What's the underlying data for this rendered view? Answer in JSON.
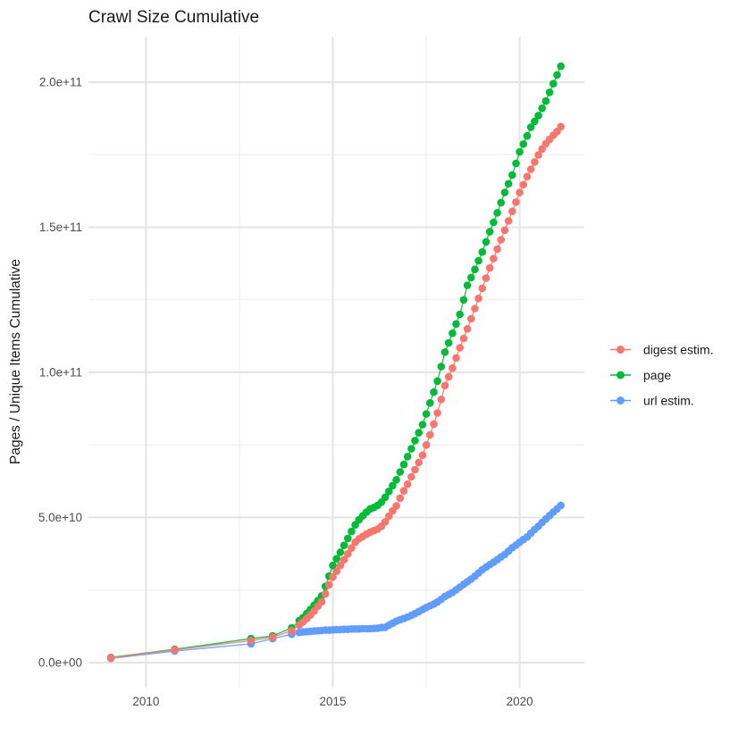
{
  "chart_data": {
    "type": "scatter",
    "title": "Crawl Size Cumulative",
    "xlabel": "",
    "ylabel": "Pages / Unique Items Cumulative",
    "values_unit": "1e9 (billions of pages / unique items)",
    "grid": true,
    "legend_position": "right",
    "x_axis": {
      "range": [
        2008.46,
        2021.73
      ],
      "ticks": [
        2010,
        2015,
        2020
      ],
      "tick_labels": [
        "2010",
        "2015",
        "2020"
      ],
      "minor_ticks": [
        2012.5,
        2017.5
      ]
    },
    "y_axis": {
      "range": [
        -8.6,
        215.7
      ],
      "ticks": [
        0,
        50,
        100,
        150,
        200
      ],
      "tick_labels": [
        "0.0e+00",
        "5.0e+10",
        "1.0e+11",
        "1.5e+11",
        "2.0e+11"
      ],
      "minor_ticks": [
        25,
        75,
        125,
        175
      ]
    },
    "draw_order": [
      1,
      2,
      0
    ],
    "series": [
      {
        "name": "digest estim.",
        "color": "#F8766D",
        "points": [
          [
            2009.06,
            1.7
          ],
          [
            2010.77,
            4.4
          ],
          [
            2012.81,
            7.6
          ],
          [
            2013.39,
            8.8
          ],
          [
            2013.9,
            11.0
          ],
          [
            2014.1,
            13.0
          ],
          [
            2014.2,
            14.0
          ],
          [
            2014.3,
            15.2
          ],
          [
            2014.4,
            16.4
          ],
          [
            2014.5,
            17.8
          ],
          [
            2014.6,
            19.4
          ],
          [
            2014.7,
            21.0
          ],
          [
            2014.8,
            23.7
          ],
          [
            2014.9,
            26.8
          ],
          [
            2015.0,
            29.5
          ],
          [
            2015.1,
            31.5
          ],
          [
            2015.2,
            33.5
          ],
          [
            2015.3,
            35.5
          ],
          [
            2015.4,
            37.5
          ],
          [
            2015.5,
            39.5
          ],
          [
            2015.6,
            41.5
          ],
          [
            2015.7,
            42.7
          ],
          [
            2015.8,
            43.5
          ],
          [
            2015.9,
            44.3
          ],
          [
            2016.0,
            45.0
          ],
          [
            2016.1,
            45.5
          ],
          [
            2016.2,
            46.0
          ],
          [
            2016.3,
            47.0
          ],
          [
            2016.4,
            48.5
          ],
          [
            2016.5,
            50.5
          ],
          [
            2016.6,
            52.3
          ],
          [
            2016.7,
            54.0
          ],
          [
            2016.8,
            56.7
          ],
          [
            2016.9,
            59.2
          ],
          [
            2017.0,
            61.5
          ],
          [
            2017.1,
            64.0
          ],
          [
            2017.2,
            66.5
          ],
          [
            2017.3,
            69.0
          ],
          [
            2017.4,
            71.5
          ],
          [
            2017.5,
            75.0
          ],
          [
            2017.6,
            78.5
          ],
          [
            2017.7,
            82.2
          ],
          [
            2017.8,
            86.0
          ],
          [
            2017.9,
            90.7
          ],
          [
            2018.0,
            95.5
          ],
          [
            2018.1,
            98.5
          ],
          [
            2018.2,
            101.5
          ],
          [
            2018.3,
            105.0
          ],
          [
            2018.4,
            108.5
          ],
          [
            2018.5,
            111.7
          ],
          [
            2018.6,
            115.0
          ],
          [
            2018.7,
            118.5
          ],
          [
            2018.8,
            122.0
          ],
          [
            2018.9,
            125.5
          ],
          [
            2019.0,
            129.0
          ],
          [
            2019.1,
            132.5
          ],
          [
            2019.2,
            136.0
          ],
          [
            2019.3,
            139.2
          ],
          [
            2019.4,
            142.5
          ],
          [
            2019.5,
            145.7
          ],
          [
            2019.6,
            149.0
          ],
          [
            2019.7,
            152.2
          ],
          [
            2019.8,
            155.5
          ],
          [
            2019.9,
            158.7
          ],
          [
            2020.0,
            162.0
          ],
          [
            2020.1,
            164.7
          ],
          [
            2020.2,
            167.5
          ],
          [
            2020.3,
            170.0
          ],
          [
            2020.4,
            172.5
          ],
          [
            2020.5,
            174.9
          ],
          [
            2020.6,
            177.0
          ],
          [
            2020.7,
            178.8
          ],
          [
            2020.8,
            180.3
          ],
          [
            2020.9,
            181.7
          ],
          [
            2021.0,
            183.0
          ],
          [
            2021.1,
            184.7
          ]
        ]
      },
      {
        "name": "page",
        "color": "#00BA38",
        "points": [
          [
            2009.06,
            1.8
          ],
          [
            2010.77,
            4.6
          ],
          [
            2012.81,
            8.3
          ],
          [
            2013.39,
            9.2
          ],
          [
            2013.9,
            12.0
          ],
          [
            2014.1,
            14.5
          ],
          [
            2014.2,
            15.5
          ],
          [
            2014.3,
            16.9
          ],
          [
            2014.4,
            18.3
          ],
          [
            2014.5,
            19.8
          ],
          [
            2014.6,
            21.4
          ],
          [
            2014.7,
            23.0
          ],
          [
            2014.8,
            26.3
          ],
          [
            2014.9,
            29.8
          ],
          [
            2015.0,
            33.5
          ],
          [
            2015.1,
            35.8
          ],
          [
            2015.2,
            38.0
          ],
          [
            2015.3,
            40.4
          ],
          [
            2015.4,
            42.8
          ],
          [
            2015.5,
            45.2
          ],
          [
            2015.6,
            47.5
          ],
          [
            2015.7,
            49.2
          ],
          [
            2015.8,
            50.6
          ],
          [
            2015.9,
            51.9
          ],
          [
            2016.0,
            53.0
          ],
          [
            2016.1,
            53.5
          ],
          [
            2016.2,
            54.2
          ],
          [
            2016.3,
            55.3
          ],
          [
            2016.4,
            57.0
          ],
          [
            2016.5,
            59.0
          ],
          [
            2016.6,
            61.0
          ],
          [
            2016.7,
            63.0
          ],
          [
            2016.8,
            65.7
          ],
          [
            2016.9,
            68.3
          ],
          [
            2017.0,
            71.0
          ],
          [
            2017.1,
            73.7
          ],
          [
            2017.2,
            76.5
          ],
          [
            2017.3,
            79.2
          ],
          [
            2017.4,
            82.0
          ],
          [
            2017.5,
            85.7
          ],
          [
            2017.6,
            89.5
          ],
          [
            2017.7,
            93.2
          ],
          [
            2017.8,
            97.0
          ],
          [
            2017.9,
            102.0
          ],
          [
            2018.0,
            107.0
          ],
          [
            2018.1,
            110.2
          ],
          [
            2018.2,
            113.5
          ],
          [
            2018.3,
            116.7
          ],
          [
            2018.4,
            120.0
          ],
          [
            2018.5,
            125.0
          ],
          [
            2018.6,
            130.0
          ],
          [
            2018.7,
            132.7
          ],
          [
            2018.8,
            135.5
          ],
          [
            2018.9,
            138.5
          ],
          [
            2019.0,
            141.5
          ],
          [
            2019.1,
            145.0
          ],
          [
            2019.2,
            148.5
          ],
          [
            2019.3,
            151.7
          ],
          [
            2019.4,
            155.0
          ],
          [
            2019.5,
            158.5
          ],
          [
            2019.6,
            162.0
          ],
          [
            2019.7,
            165.0
          ],
          [
            2019.8,
            168.0
          ],
          [
            2019.9,
            172.0
          ],
          [
            2020.0,
            176.0
          ],
          [
            2020.1,
            178.7
          ],
          [
            2020.2,
            181.5
          ],
          [
            2020.3,
            184.5
          ],
          [
            2020.4,
            186.5
          ],
          [
            2020.5,
            188.5
          ],
          [
            2020.6,
            191.0
          ],
          [
            2020.7,
            193.5
          ],
          [
            2020.8,
            196.5
          ],
          [
            2020.9,
            199.5
          ],
          [
            2021.0,
            202.5
          ],
          [
            2021.1,
            205.5
          ]
        ]
      },
      {
        "name": "url estim.",
        "color": "#619CFF",
        "points": [
          [
            2009.06,
            1.5
          ],
          [
            2010.77,
            4.0
          ],
          [
            2012.81,
            6.5
          ],
          [
            2013.39,
            8.3
          ],
          [
            2013.9,
            9.8
          ],
          [
            2014.1,
            10.4
          ],
          [
            2014.2,
            10.6
          ],
          [
            2014.3,
            10.7
          ],
          [
            2014.4,
            10.8
          ],
          [
            2014.5,
            10.9
          ],
          [
            2014.6,
            11.0
          ],
          [
            2014.7,
            11.1
          ],
          [
            2014.8,
            11.2
          ],
          [
            2014.9,
            11.2
          ],
          [
            2015.0,
            11.3
          ],
          [
            2015.1,
            11.4
          ],
          [
            2015.2,
            11.4
          ],
          [
            2015.3,
            11.5
          ],
          [
            2015.4,
            11.5
          ],
          [
            2015.5,
            11.6
          ],
          [
            2015.6,
            11.6
          ],
          [
            2015.7,
            11.6
          ],
          [
            2015.8,
            11.7
          ],
          [
            2015.9,
            11.7
          ],
          [
            2016.0,
            11.7
          ],
          [
            2016.1,
            11.8
          ],
          [
            2016.2,
            11.9
          ],
          [
            2016.3,
            12.1
          ],
          [
            2016.4,
            12.2
          ],
          [
            2016.5,
            12.9
          ],
          [
            2016.6,
            13.6
          ],
          [
            2016.7,
            14.3
          ],
          [
            2016.8,
            14.8
          ],
          [
            2016.9,
            15.2
          ],
          [
            2017.0,
            15.7
          ],
          [
            2017.1,
            16.3
          ],
          [
            2017.2,
            16.9
          ],
          [
            2017.3,
            17.6
          ],
          [
            2017.4,
            18.3
          ],
          [
            2017.5,
            19.0
          ],
          [
            2017.6,
            19.6
          ],
          [
            2017.7,
            20.2
          ],
          [
            2017.8,
            20.9
          ],
          [
            2017.9,
            21.8
          ],
          [
            2018.0,
            22.8
          ],
          [
            2018.1,
            23.5
          ],
          [
            2018.2,
            24.2
          ],
          [
            2018.3,
            25.1
          ],
          [
            2018.4,
            26.0
          ],
          [
            2018.5,
            27.0
          ],
          [
            2018.6,
            27.9
          ],
          [
            2018.7,
            28.8
          ],
          [
            2018.8,
            29.8
          ],
          [
            2018.9,
            30.9
          ],
          [
            2019.0,
            32.0
          ],
          [
            2019.1,
            32.9
          ],
          [
            2019.2,
            33.8
          ],
          [
            2019.3,
            34.6
          ],
          [
            2019.4,
            35.5
          ],
          [
            2019.5,
            36.4
          ],
          [
            2019.6,
            37.3
          ],
          [
            2019.7,
            38.4
          ],
          [
            2019.8,
            39.6
          ],
          [
            2019.9,
            40.5
          ],
          [
            2020.0,
            41.5
          ],
          [
            2020.1,
            42.4
          ],
          [
            2020.2,
            43.3
          ],
          [
            2020.3,
            44.6
          ],
          [
            2020.4,
            45.9
          ],
          [
            2020.5,
            47.0
          ],
          [
            2020.6,
            48.3
          ],
          [
            2020.7,
            49.5
          ],
          [
            2020.8,
            50.7
          ],
          [
            2020.9,
            51.9
          ],
          [
            2021.0,
            53.0
          ],
          [
            2021.1,
            54.2
          ]
        ]
      }
    ],
    "style": {
      "grid_major_color": "#e4e4e4",
      "grid_minor_color": "#f0f0f0",
      "point_radius": 4.3,
      "line_width": 1.4
    }
  }
}
